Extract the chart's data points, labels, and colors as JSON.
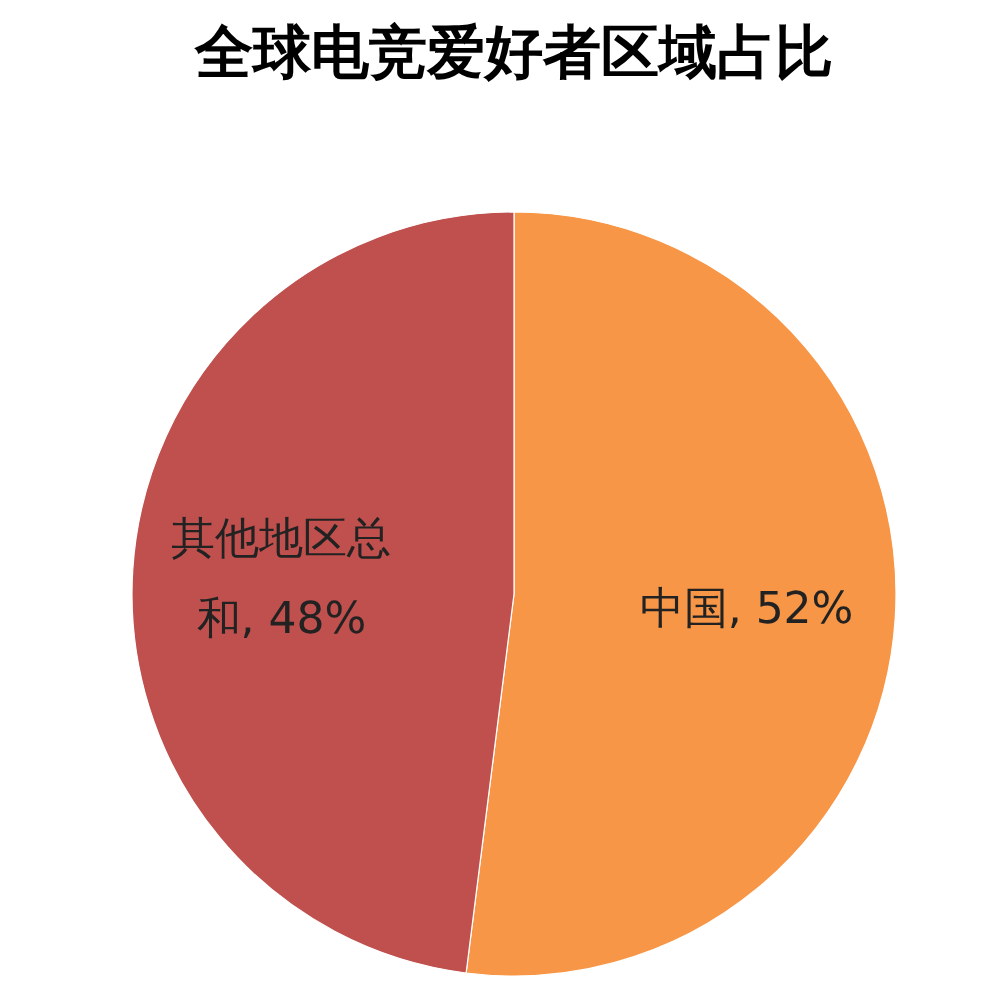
{
  "chart_data": {
    "type": "pie",
    "title": "全球电竞爱好者区域占比",
    "categories": [
      "中国",
      "其他地区总和"
    ],
    "values": [
      52,
      48
    ],
    "colors": [
      "#f79646",
      "#c0504d"
    ],
    "value_labels": [
      ", 52%",
      ", 48%"
    ],
    "legend": false
  }
}
